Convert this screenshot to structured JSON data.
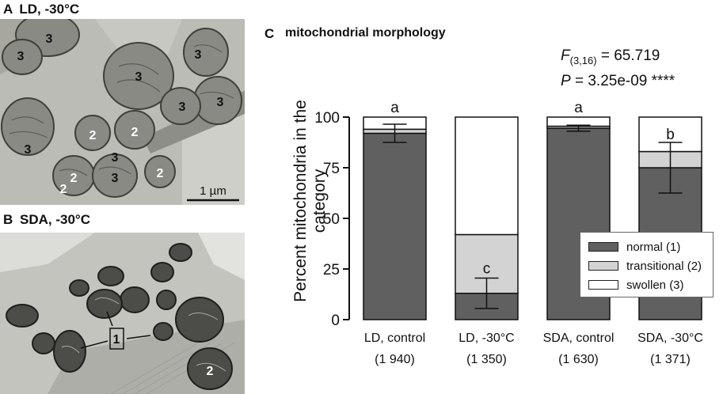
{
  "panels": {
    "a": {
      "letter": "A",
      "title": "LD, -30°C",
      "scale_bar": "1 µm",
      "labels": [
        "3",
        "3",
        "3",
        "3",
        "3",
        "3",
        "3",
        "2",
        "2",
        "2",
        "2",
        "3",
        "3",
        "2"
      ]
    },
    "b": {
      "letter": "B",
      "title": "SDA, -30°C",
      "labels": [
        "1",
        "2"
      ]
    },
    "c": {
      "letter": "C",
      "title": "mitochondrial morphology"
    }
  },
  "stats": {
    "f_label": "F",
    "f_sub": "(3,16)",
    "f_value": "= 65.719",
    "p_label": "P",
    "p_value": "= 3.25e-09 ****"
  },
  "colors": {
    "normal": "#606060",
    "transitional": "#d3d3d3",
    "swollen": "#ffffff"
  },
  "chart_data": {
    "type": "bar",
    "stacked": true,
    "title": "mitochondrial morphology",
    "ylabel": "Percent mitochondria in the category",
    "ylim": [
      0,
      100
    ],
    "yticks": [
      0,
      25,
      50,
      75,
      100
    ],
    "categories": [
      "LD, control",
      "LD, -30°C",
      "SDA, control",
      "SDA, -30°C"
    ],
    "category_n": [
      "(1 940)",
      "(1 350)",
      "(1 630)",
      "(1 371)"
    ],
    "series": [
      {
        "name": "normal (1)",
        "values": [
          92,
          13,
          94.5,
          75
        ],
        "error": [
          4.5,
          7.5,
          1.5,
          12.5
        ]
      },
      {
        "name": "transitional (2)",
        "values": [
          2,
          29,
          1,
          8
        ]
      },
      {
        "name": "swollen (3)",
        "values": [
          6,
          58,
          4.5,
          17
        ]
      }
    ],
    "significance_letters": [
      "a",
      "c",
      "a",
      "b"
    ],
    "legend_position": "lower-right",
    "grid": false
  }
}
